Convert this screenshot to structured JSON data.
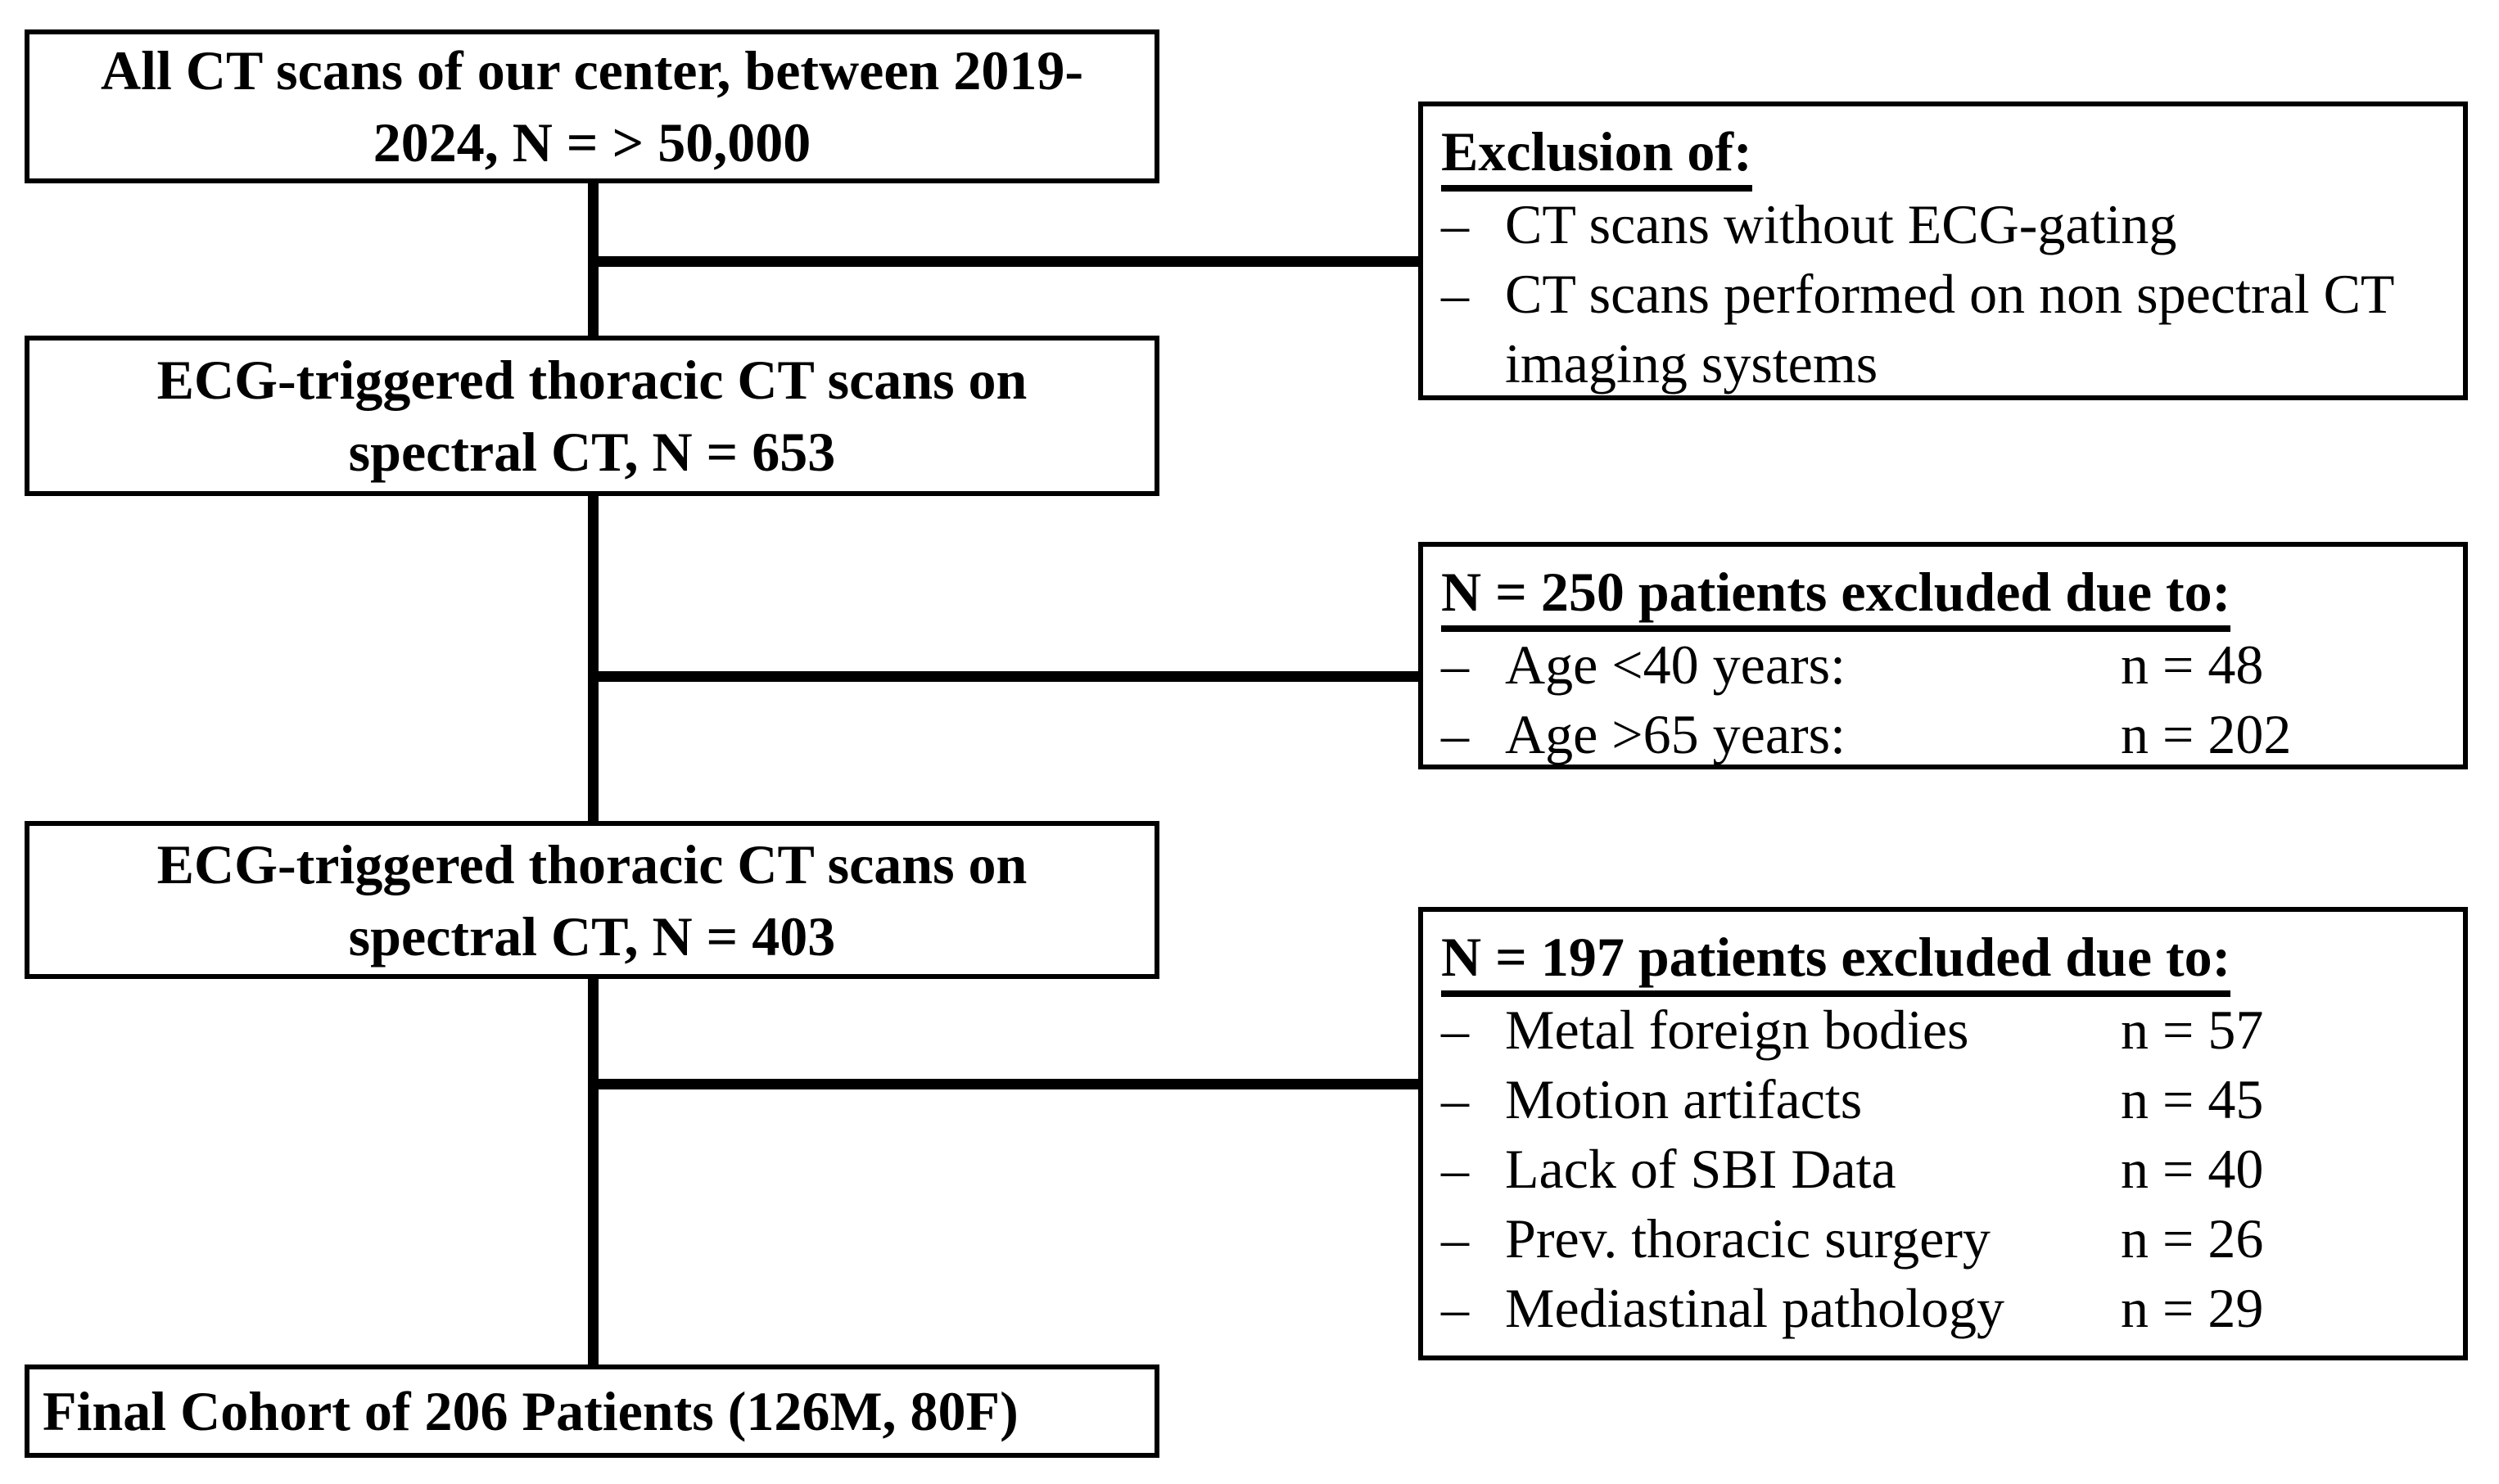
{
  "diagram": {
    "background_color": "#ffffff",
    "line_color": "#000000",
    "text_color": "#000000",
    "flow_boxes": [
      {
        "name": "all-ct-scans",
        "lines": [
          "All CT scans of our center, between 2019-",
          "2024, N = > 50,000"
        ]
      },
      {
        "name": "ecg-triggered-653",
        "lines": [
          "ECG-triggered thoracic CT scans on",
          "spectral CT, N = 653"
        ]
      },
      {
        "name": "ecg-triggered-403",
        "lines": [
          "ECG-triggered thoracic CT scans on",
          "spectral CT, N = 403"
        ]
      },
      {
        "name": "final-cohort",
        "lines": [
          "Final Cohort of 206 Patients (126M, 80F)"
        ]
      }
    ],
    "exclusion_boxes": [
      {
        "title": "Exclusion of:",
        "items": [
          {
            "bullet": "–",
            "label": "CT scans without ECG-gating",
            "count": ""
          },
          {
            "bullet": "–",
            "label": "CT scans performed on non spectral CT imaging systems",
            "count": ""
          }
        ]
      },
      {
        "title": "N = 250 patients excluded due to:",
        "items": [
          {
            "bullet": "–",
            "label": "Age <40 years:",
            "count": "n = 48"
          },
          {
            "bullet": "–",
            "label": "Age >65 years:",
            "count": "n = 202"
          }
        ]
      },
      {
        "title": "N = 197 patients excluded due to:",
        "items": [
          {
            "bullet": "–",
            "label": "Metal foreign bodies",
            "count": "n = 57"
          },
          {
            "bullet": "–",
            "label": "Motion artifacts",
            "count": "n = 45"
          },
          {
            "bullet": "–",
            "label": "Lack of SBI Data",
            "count": "n = 40"
          },
          {
            "bullet": "–",
            "label": "Prev. thoracic surgery",
            "count": "n = 26"
          },
          {
            "bullet": "–",
            "label": "Mediastinal pathology",
            "count": "n = 29"
          }
        ]
      }
    ]
  }
}
